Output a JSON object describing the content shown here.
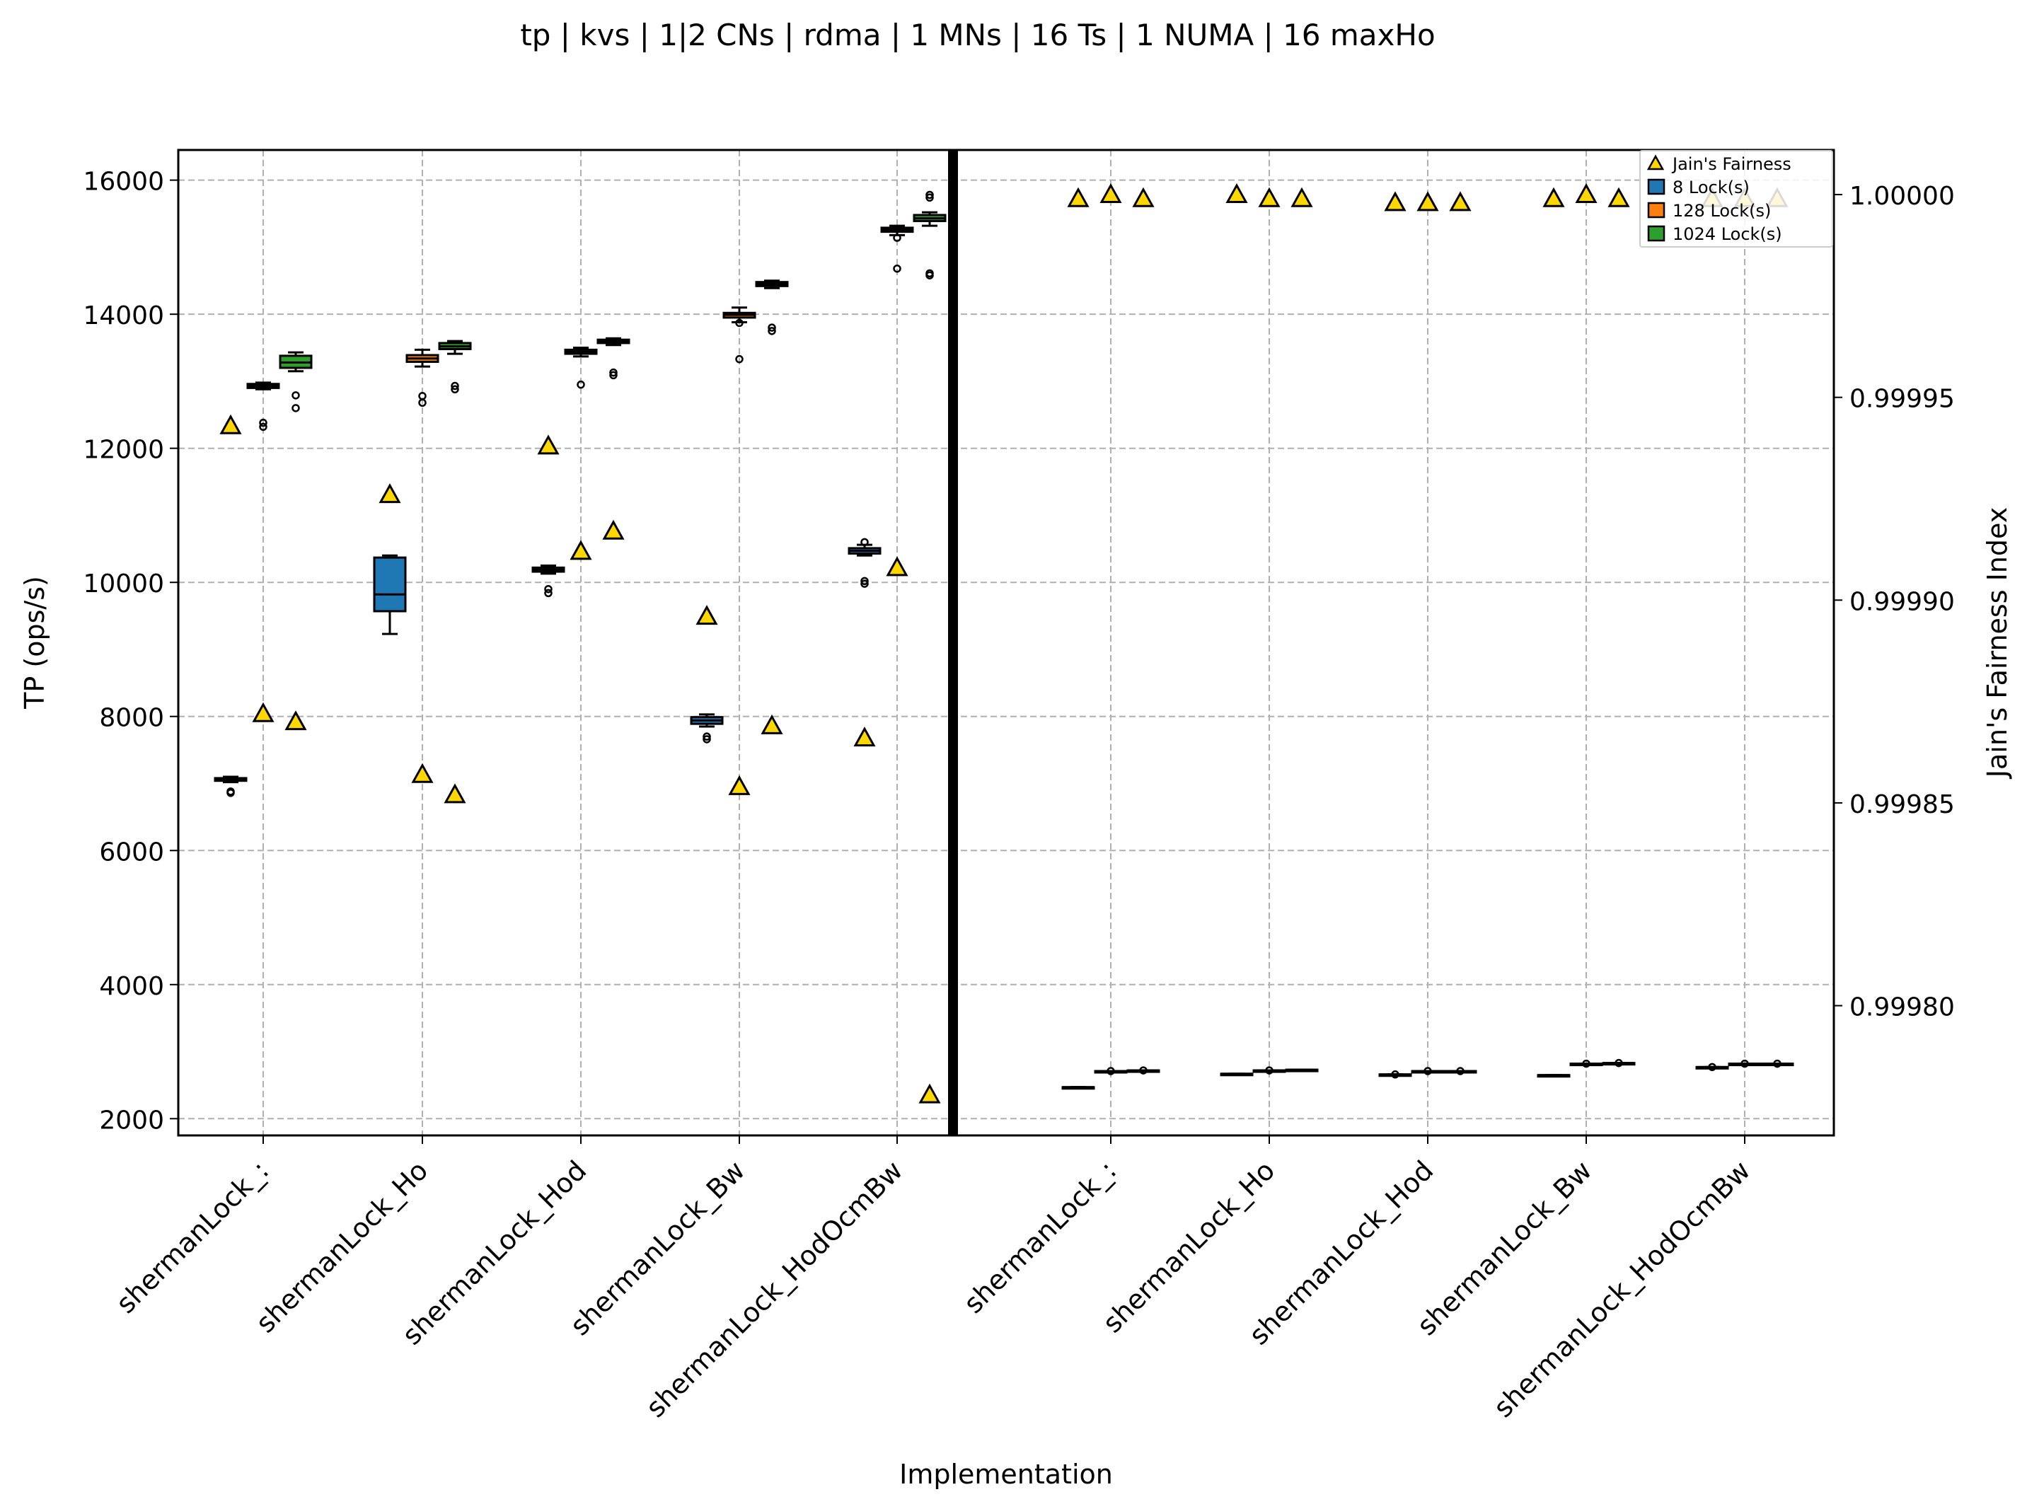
{
  "chart_data": {
    "type": "box",
    "title": "tp | kvs | 1|2 CNs | rdma | 1 MNs | 16 Ts | 1 NUMA | 16 maxHo",
    "xlabel": "Implementation",
    "ylabel": "TP (ops/s)",
    "ylabel_right": "Jain's Fairness Index",
    "ylim": [
      1750,
      16450
    ],
    "ylim_right": [
      0.999768,
      1.000011
    ],
    "yticks": [
      2000,
      4000,
      6000,
      8000,
      10000,
      12000,
      14000,
      16000
    ],
    "yticks_right": [
      "0.99980",
      "0.99985",
      "0.99990",
      "0.99995",
      "1.00000"
    ],
    "yticks_right_values": [
      0.9998,
      0.99985,
      0.9999,
      0.99995,
      1.0
    ],
    "grid": true,
    "legend_position": "top-right",
    "legend": [
      {
        "label": "Jain's Fairness",
        "marker": "triangle",
        "color": "#ffd700"
      },
      {
        "label": "8 Lock(s)",
        "marker": "square",
        "color": "#1f77b4"
      },
      {
        "label": "128 Lock(s)",
        "marker": "square",
        "color": "#ff7f0e"
      },
      {
        "label": "1024 Lock(s)",
        "marker": "square",
        "color": "#2ca02c"
      }
    ],
    "colors": {
      "8": "#1f77b4",
      "128": "#ff7f0e",
      "1024": "#2ca02c",
      "fairness": "#ffd700",
      "separator": "#000000"
    },
    "panels": [
      {
        "side": "left (1 CN)",
        "categories": [
          "shermanLock_:",
          "shermanLock_Ho",
          "shermanLock_Hod",
          "shermanLock_Bw",
          "shermanLock_HodOcmBw"
        ],
        "groups": [
          {
            "category": "shermanLock_:",
            "series": [
              {
                "locks": 8,
                "box": {
                  "min": 7020,
                  "q1": 7040,
                  "median": 7060,
                  "q3": 7080,
                  "max": 7100,
                  "outliers": [
                    6860,
                    6880
                  ]
                },
                "fairness": 0.999943
              },
              {
                "locks": 128,
                "box": {
                  "min": 12880,
                  "q1": 12900,
                  "median": 12930,
                  "q3": 12960,
                  "max": 12980,
                  "outliers": [
                    12320,
                    12380
                  ]
                },
                "fairness": 0.999872
              },
              {
                "locks": 1024,
                "box": {
                  "min": 13150,
                  "q1": 13200,
                  "median": 13280,
                  "q3": 13380,
                  "max": 13430,
                  "outliers": [
                    12600,
                    12790
                  ]
                },
                "fairness": 0.99987
              }
            ]
          },
          {
            "category": "shermanLock_Ho",
            "series": [
              {
                "locks": 8,
                "box": {
                  "min": 9230,
                  "q1": 9570,
                  "median": 9820,
                  "q3": 10370,
                  "max": 10400,
                  "outliers": []
                },
                "fairness": 0.999926
              },
              {
                "locks": 128,
                "box": {
                  "min": 13220,
                  "q1": 13290,
                  "median": 13340,
                  "q3": 13390,
                  "max": 13470,
                  "outliers": [
                    12680,
                    12780
                  ]
                },
                "fairness": 0.999857
              },
              {
                "locks": 1024,
                "box": {
                  "min": 13410,
                  "q1": 13480,
                  "median": 13520,
                  "q3": 13570,
                  "max": 13600,
                  "outliers": [
                    12880,
                    12930
                  ]
                },
                "fairness": 0.999852
              }
            ]
          },
          {
            "category": "shermanLock_Hod",
            "series": [
              {
                "locks": 8,
                "box": {
                  "min": 10130,
                  "q1": 10160,
                  "median": 10190,
                  "q3": 10220,
                  "max": 10250,
                  "outliers": [
                    9840,
                    9900
                  ]
                },
                "fairness": 0.999938
              },
              {
                "locks": 128,
                "box": {
                  "min": 13370,
                  "q1": 13410,
                  "median": 13440,
                  "q3": 13470,
                  "max": 13500,
                  "outliers": [
                    12950
                  ]
                },
                "fairness": 0.999912
              },
              {
                "locks": 1024,
                "box": {
                  "min": 13540,
                  "q1": 13570,
                  "median": 13600,
                  "q3": 13620,
                  "max": 13640,
                  "outliers": [
                    13090,
                    13130
                  ]
                },
                "fairness": 0.999917
              }
            ]
          },
          {
            "category": "shermanLock_Bw",
            "series": [
              {
                "locks": 8,
                "box": {
                  "min": 7850,
                  "q1": 7890,
                  "median": 7940,
                  "q3": 7990,
                  "max": 8030,
                  "outliers": [
                    7660,
                    7700
                  ]
                },
                "fairness": 0.999896
              },
              {
                "locks": 128,
                "box": {
                  "min": 13880,
                  "q1": 13950,
                  "median": 13990,
                  "q3": 14020,
                  "max": 14100,
                  "outliers": [
                    13330,
                    13870
                  ]
                },
                "fairness": 0.999854
              },
              {
                "locks": 1024,
                "box": {
                  "min": 14390,
                  "q1": 14420,
                  "median": 14450,
                  "q3": 14480,
                  "max": 14500,
                  "outliers": [
                    13750,
                    13800
                  ]
                },
                "fairness": 0.999869
              }
            ]
          },
          {
            "category": "shermanLock_HodOcmBw",
            "series": [
              {
                "locks": 8,
                "box": {
                  "min": 10400,
                  "q1": 10430,
                  "median": 10470,
                  "q3": 10510,
                  "max": 10560,
                  "outliers": [
                    9980,
                    10020,
                    10600
                  ]
                },
                "fairness": 0.999866
              },
              {
                "locks": 128,
                "box": {
                  "min": 15180,
                  "q1": 15230,
                  "median": 15260,
                  "q3": 15290,
                  "max": 15320,
                  "outliers": [
                    14680,
                    15140
                  ]
                },
                "fairness": 0.999908
              },
              {
                "locks": 1024,
                "box": {
                  "min": 15320,
                  "q1": 15390,
                  "median": 15430,
                  "q3": 15480,
                  "max": 15520,
                  "outliers": [
                    14580,
                    14610,
                    15740,
                    15780
                  ]
                },
                "fairness": 0.999778
              }
            ]
          }
        ]
      },
      {
        "side": "right (2 CNs)",
        "categories": [
          "shermanLock_:",
          "shermanLock_Ho",
          "shermanLock_Hod",
          "shermanLock_Bw",
          "shermanLock_HodOcmBw"
        ],
        "groups": [
          {
            "category": "shermanLock_:",
            "series": [
              {
                "locks": 8,
                "box": {
                  "min": 2470,
                  "q1": 2470,
                  "median": 2470,
                  "q3": 2470,
                  "max": 2470,
                  "outliers": []
                },
                "fairness": 0.999999
              },
              {
                "locks": 128,
                "box": {
                  "min": 2710,
                  "q1": 2710,
                  "median": 2710,
                  "q3": 2710,
                  "max": 2710,
                  "outliers": [
                    2710
                  ]
                },
                "fairness": 1.0
              },
              {
                "locks": 1024,
                "box": {
                  "min": 2720,
                  "q1": 2720,
                  "median": 2720,
                  "q3": 2720,
                  "max": 2720,
                  "outliers": [
                    2720
                  ]
                },
                "fairness": 0.999999
              }
            ]
          },
          {
            "category": "shermanLock_Ho",
            "series": [
              {
                "locks": 8,
                "box": {
                  "min": 2670,
                  "q1": 2670,
                  "median": 2670,
                  "q3": 2670,
                  "max": 2670,
                  "outliers": []
                },
                "fairness": 1.0
              },
              {
                "locks": 128,
                "box": {
                  "min": 2720,
                  "q1": 2720,
                  "median": 2720,
                  "q3": 2720,
                  "max": 2720,
                  "outliers": [
                    2720
                  ]
                },
                "fairness": 0.999999
              },
              {
                "locks": 1024,
                "box": {
                  "min": 2730,
                  "q1": 2730,
                  "median": 2730,
                  "q3": 2730,
                  "max": 2730,
                  "outliers": []
                },
                "fairness": 0.999999
              }
            ]
          },
          {
            "category": "shermanLock_Hod",
            "series": [
              {
                "locks": 8,
                "box": {
                  "min": 2660,
                  "q1": 2660,
                  "median": 2660,
                  "q3": 2660,
                  "max": 2660,
                  "outliers": [
                    2660
                  ]
                },
                "fairness": 0.999998
              },
              {
                "locks": 128,
                "box": {
                  "min": 2710,
                  "q1": 2710,
                  "median": 2710,
                  "q3": 2710,
                  "max": 2710,
                  "outliers": [
                    2710
                  ]
                },
                "fairness": 0.999998
              },
              {
                "locks": 1024,
                "box": {
                  "min": 2710,
                  "q1": 2710,
                  "median": 2710,
                  "q3": 2710,
                  "max": 2710,
                  "outliers": [
                    2710
                  ]
                },
                "fairness": 0.999998
              }
            ]
          },
          {
            "category": "shermanLock_Bw",
            "series": [
              {
                "locks": 8,
                "box": {
                  "min": 2650,
                  "q1": 2650,
                  "median": 2650,
                  "q3": 2650,
                  "max": 2650,
                  "outliers": []
                },
                "fairness": 0.999999
              },
              {
                "locks": 128,
                "box": {
                  "min": 2820,
                  "q1": 2820,
                  "median": 2820,
                  "q3": 2820,
                  "max": 2820,
                  "outliers": [
                    2820
                  ]
                },
                "fairness": 1.0
              },
              {
                "locks": 1024,
                "box": {
                  "min": 2830,
                  "q1": 2830,
                  "median": 2830,
                  "q3": 2830,
                  "max": 2830,
                  "outliers": [
                    2830
                  ]
                },
                "fairness": 0.999999
              }
            ]
          },
          {
            "category": "shermanLock_HodOcmBw",
            "series": [
              {
                "locks": 8,
                "box": {
                  "min": 2770,
                  "q1": 2770,
                  "median": 2770,
                  "q3": 2770,
                  "max": 2770,
                  "outliers": [
                    2770
                  ]
                },
                "fairness": 0.999999
              },
              {
                "locks": 128,
                "box": {
                  "min": 2820,
                  "q1": 2820,
                  "median": 2820,
                  "q3": 2820,
                  "max": 2820,
                  "outliers": [
                    2820
                  ]
                },
                "fairness": 0.999999
              },
              {
                "locks": 1024,
                "box": {
                  "min": 2820,
                  "q1": 2820,
                  "median": 2820,
                  "q3": 2820,
                  "max": 2820,
                  "outliers": [
                    2820
                  ]
                },
                "fairness": 0.999999
              }
            ]
          }
        ]
      }
    ]
  }
}
